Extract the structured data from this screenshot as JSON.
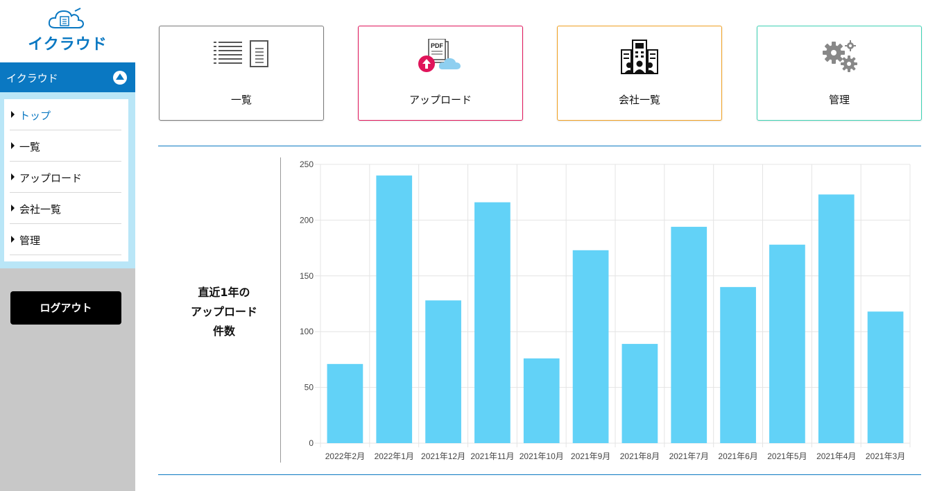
{
  "app": {
    "logo_text": "イクラウド"
  },
  "sidebar": {
    "section_title": "イクラウド",
    "items": [
      {
        "label": "トップ",
        "active": true
      },
      {
        "label": "一覧",
        "active": false
      },
      {
        "label": "アップロード",
        "active": false
      },
      {
        "label": "会社一覧",
        "active": false
      },
      {
        "label": "管理",
        "active": false
      }
    ],
    "logout_label": "ログアウト"
  },
  "cards": [
    {
      "label": "一覧",
      "icon": "list-icon",
      "border_color": "#7a7a7a"
    },
    {
      "label": "アップロード",
      "icon": "pdf-upload-icon",
      "border_color": "#e0145a"
    },
    {
      "label": "会社一覧",
      "icon": "company-building-icon",
      "border_color": "#f0a020"
    },
    {
      "label": "管理",
      "icon": "gears-icon",
      "border_color": "#3cd2b4"
    }
  ],
  "chart_panel": {
    "title_lines": [
      "直近1年の",
      "アップロード",
      "件数"
    ]
  },
  "chart_data": {
    "type": "bar",
    "categories": [
      "2022年2月",
      "2022年1月",
      "2021年12月",
      "2021年11月",
      "2021年10月",
      "2021年9月",
      "2021年8月",
      "2021年7月",
      "2021年6月",
      "2021年5月",
      "2021年4月",
      "2021年3月"
    ],
    "values": [
      71,
      240,
      128,
      216,
      76,
      173,
      89,
      194,
      140,
      178,
      223,
      118
    ],
    "yticks": [
      0,
      50,
      100,
      150,
      200,
      250
    ],
    "ylim": [
      0,
      250
    ],
    "bar_color": "#62d2f7",
    "grid": true,
    "legend": "none"
  },
  "colors": {
    "primary": "#0a78c2",
    "nav_bg": "#b9e6f7",
    "sidebar_bg": "#c8c8c8"
  }
}
